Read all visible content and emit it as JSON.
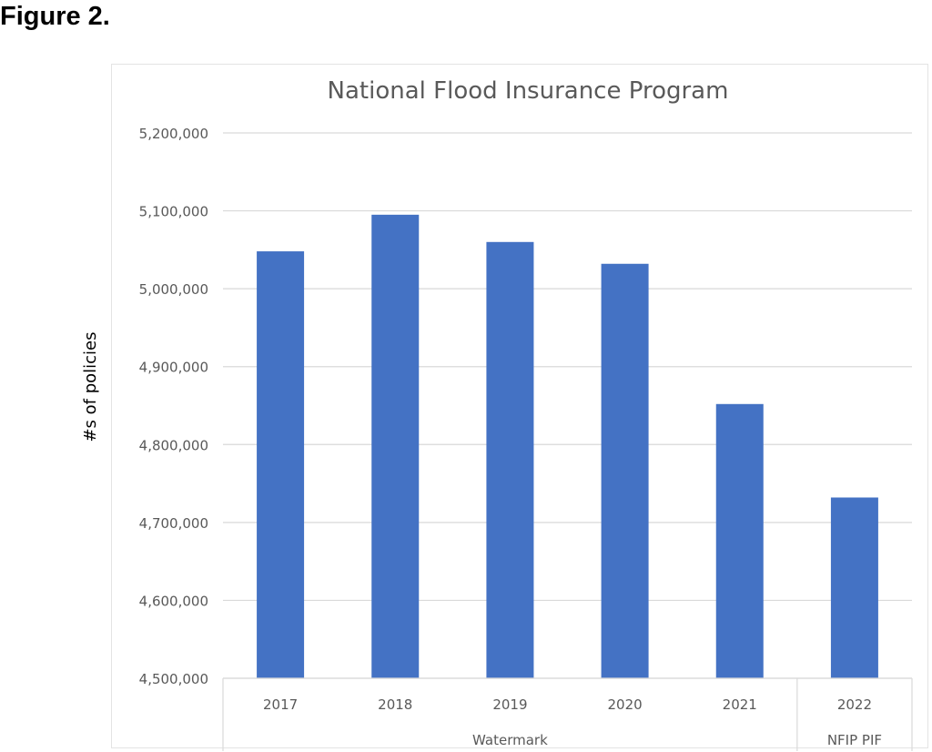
{
  "figure": {
    "label": "Figure 2."
  },
  "chart_data": {
    "type": "bar",
    "title": "National Flood Insurance Program",
    "xlabel": "",
    "ylabel": "#s of policies",
    "categories": [
      "2017",
      "2018",
      "2019",
      "2020",
      "2021",
      "2022"
    ],
    "values": [
      5048000,
      5095000,
      5060000,
      5032000,
      4852000,
      4732000
    ],
    "ylim": [
      4500000,
      5200000
    ],
    "yticks": [
      "4,500,000",
      "4,600,000",
      "4,700,000",
      "4,800,000",
      "4,900,000",
      "5,000,000",
      "5,100,000",
      "5,200,000"
    ],
    "ytick_values": [
      4500000,
      4600000,
      4700000,
      4800000,
      4900000,
      5000000,
      5100000,
      5200000
    ],
    "groups": [
      {
        "label": "Watermark",
        "categories": [
          "2017",
          "2018",
          "2019",
          "2020",
          "2021"
        ]
      },
      {
        "label": "NFIP PIF",
        "categories": [
          "2022"
        ]
      }
    ],
    "bar_color": "#4472c4",
    "grid": true,
    "legend": "none"
  }
}
